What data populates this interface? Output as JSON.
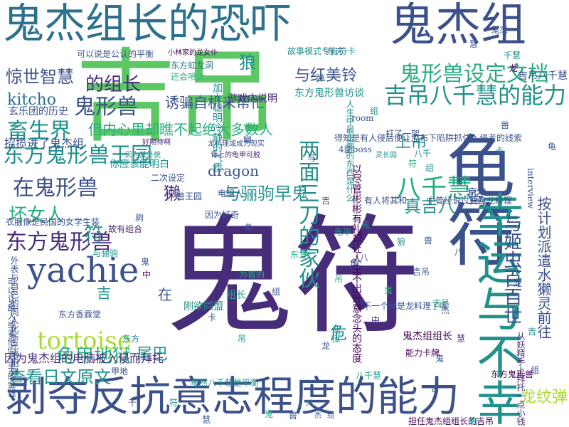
{
  "palette": {
    "dark_purple": "#440154",
    "purple": "#472c7a",
    "indigo": "#3b518b",
    "blue": "#2c718e",
    "teal": "#21918c",
    "green": "#27ad81",
    "light_green": "#5cc863",
    "lime": "#aadc32",
    "yellow": "#fde725"
  },
  "words": [
    {
      "text": "鬼杰组长的恐吓"
    },
    {
      "text": "鬼杰组"
    },
    {
      "text": "吉吊"
    },
    {
      "text": "鬼符"
    },
    {
      "text": "龟符"
    },
    {
      "text": "幸运与不幸"
    },
    {
      "text": "剥夺反抗意志程度的能力"
    },
    {
      "text": "yachie"
    },
    {
      "text": "tortoise"
    },
    {
      "text": "吉吊八千慧的能力"
    },
    {
      "text": "鬼形兽设定文档"
    },
    {
      "text": "八千慧"
    },
    {
      "text": "两面三刀的家伙"
    },
    {
      "text": "与姬虫百百世"
    },
    {
      "text": "鬼形兽"
    },
    {
      "text": "畜生界"
    },
    {
      "text": "东方鬼形兽王园"
    },
    {
      "text": "在鬼形兽"
    },
    {
      "text": "东方鬼形兽"
    },
    {
      "text": "坏女人"
    },
    {
      "text": "惊世智慧"
    },
    {
      "text": "kitcho"
    },
    {
      "text": "的组长"
    },
    {
      "text": "招揽进了鬼杰组"
    },
    {
      "text": "龟甲地狱"
    },
    {
      "text": "查看日文原文"
    },
    {
      "text": "与骊驹早鬼"
    },
    {
      "text": "与红美铃"
    },
    {
      "text": "dragon"
    },
    {
      "text": "龙纹弹"
    },
    {
      "text": "真吉八"
    },
    {
      "text": "上吊"
    },
    {
      "text": "诱骗自机来帮忙"
    },
    {
      "text": "但内心里却瞧不起绝大多数人"
    },
    {
      "text": "狼"
    },
    {
      "text": "獭"
    },
    {
      "text": "符"
    },
    {
      "text": "鹫"
    },
    {
      "text": "危"
    },
    {
      "text": "尾巴"
    },
    {
      "text": "在"
    },
    {
      "text": "吉"
    },
    {
      "text": "东方鬼形兽访谈"
    },
    {
      "text": "因为鬼杰组的电脑被入侵而拜托"
    },
    {
      "text": "鬼杰组组长"
    },
    {
      "text": "按计划派遣水獭灵前往"
    },
    {
      "text": "得知是有人侵后便让监布下陷阱抓住入侵者的线索"
    },
    {
      "text": "以尽管彬彬有礼却让人生不出好意念头的态度"
    },
    {
      "text": "担任鬼杰组组长的吉吊"
    },
    {
      "text": "东方香霖堂"
    },
    {
      "text": "东方虹龙洞"
    },
    {
      "text": "故事模式专有符卡"
    },
    {
      "text": "游戏内说明"
    },
    {
      "text": "interview"
    },
    {
      "text": "room"
    },
    {
      "text": "4面boss"
    },
    {
      "text": "打了一架"
    },
    {
      "text": "能力卡牌"
    },
    {
      "text": "玄乐团的历史"
    },
    {
      "text": "可以说是公认的平衡"
    },
    {
      "text": "小林家的龙女仆"
    },
    {
      "text": "还会喷火"
    },
    {
      "text": "好期待啊"
    },
    {
      "text": "龙料理或成为现实"
    },
    {
      "text": "背上的龟甲可脱"
    },
    {
      "text": "二次设定"
    },
    {
      "text": "电锯人"
    },
    {
      "text": "兽王园"
    },
    {
      "text": "有人将其和"
    },
    {
      "text": "灵长园"
    },
    {
      "text": "为首的"
    },
    {
      "text": "刚欲同盟"
    },
    {
      "text": "甲地"
    },
    {
      "text": "地狱"
    },
    {
      "text": "中"
    },
    {
      "text": "从妖精手上拜托一点小钱"
    },
    {
      "text": "因为好奇"
    },
    {
      "text": "外表与自己的同人化所已略相似"
    },
    {
      "text": "可以让敌人或者他们一半的金钱"
    },
    {
      "text": "衣服像是民国的女学生装"
    },
    {
      "text": "你应该能明白"
    },
    {
      "text": "故有组合"
    },
    {
      "text": "因为其外貌"
    },
    {
      "text": "虽然八千慧是平衡"
    },
    {
      "text": "下一个就是龙料理了呢"
    },
    {
      "text": "中曾经说过要吃龙料理"
    },
    {
      "text": "与"
    },
    {
      "text": "八"
    },
    {
      "text": "中"
    },
    {
      "text": "加上聪明冷静的气质"
    },
    {
      "text": "人生中最重要的东西是什么"
    },
    {
      "text": "吉吊八千慧"
    },
    {
      "text": "幽"
    },
    {
      "text": "鬼"
    },
    {
      "text": "符"
    },
    {
      "text": "东方鬼形兽"
    },
    {
      "text": "组长"
    },
    {
      "text": "组"
    },
    {
      "text": "鬼"
    },
    {
      "text": "狼"
    },
    {
      "text": "龟"
    },
    {
      "text": "与骊驹"
    },
    {
      "text": "东方"
    },
    {
      "text": "八千"
    },
    {
      "text": "吉吊"
    },
    {
      "text": "东方"
    },
    {
      "text": "龟"
    },
    {
      "text": "弹"
    },
    {
      "text": "慧"
    },
    {
      "text": "卡"
    },
    {
      "text": "龟甲"
    },
    {
      "text": "驹"
    },
    {
      "text": "吊"
    },
    {
      "text": "吉吊"
    },
    {
      "text": "组"
    },
    {
      "text": "慧"
    },
    {
      "text": "龙"
    },
    {
      "text": "卡"
    },
    {
      "text": "吊"
    },
    {
      "text": "兽"
    },
    {
      "text": "鬼"
    },
    {
      "text": "八"
    },
    {
      "text": "鬼杰"
    },
    {
      "text": "千慧"
    },
    {
      "text": "吉"
    },
    {
      "text": "东方"
    },
    {
      "text": "龙"
    },
    {
      "text": "八千慧"
    },
    {
      "text": "杰"
    },
    {
      "text": "组"
    },
    {
      "text": "千"
    },
    {
      "text": "兽"
    },
    {
      "text": "吉"
    },
    {
      "text": "鬼"
    },
    {
      "text": "组"
    },
    {
      "text": "八"
    },
    {
      "text": "龙"
    },
    {
      "text": "慧"
    },
    {
      "text": "驹"
    },
    {
      "text": "龟"
    },
    {
      "text": "鬼"
    },
    {
      "text": "吉"
    },
    {
      "text": "符"
    },
    {
      "text": "兽"
    },
    {
      "text": "杰"
    },
    {
      "text": "组"
    }
  ]
}
